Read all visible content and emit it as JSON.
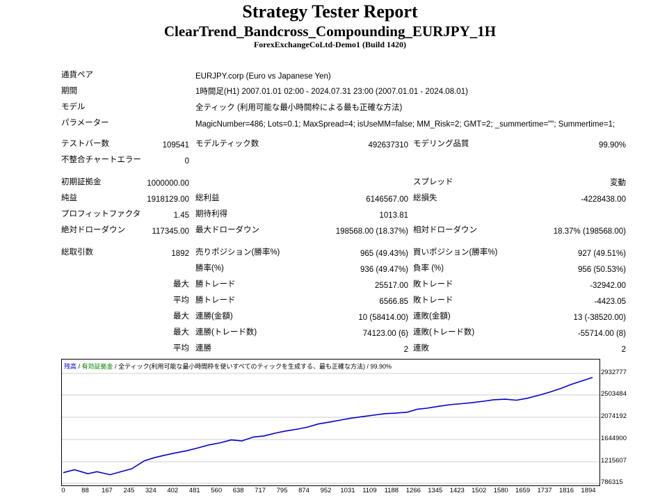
{
  "header": {
    "title": "Strategy Tester Report",
    "subtitle": "ClearTrend_Bandcross_Compounding_EURJPY_1H",
    "server": "ForexExchangeCoLtd-Demo1 (Build 1420)"
  },
  "info": [
    {
      "label": "通貨ペア",
      "value": "EURJPY.corp (Euro vs Japanese Yen)"
    },
    {
      "label": "期間",
      "value": "1時間足(H1) 2007.01.01 02:00 - 2024.07.31 23:00 (2007.01.01 - 2024.08.01)"
    },
    {
      "label": "モデル",
      "value": "全ティック (利用可能な最小時間枠による最も正確な方法)"
    },
    {
      "label": "パラメーター",
      "value": "MagicNumber=486; Lots=0.1; MaxSpread=4; isUseMM=false; MM_Risk=2; GMT=2; _summertime=\"\"; Summertime=1;"
    }
  ],
  "stats": {
    "bars_label": "テストバー数",
    "bars": "109541",
    "ticks_label": "モデルティック数",
    "ticks": "492637310",
    "quality_label": "モデリング品質",
    "quality": "99.90%",
    "errors_label": "不整合チャートエラー",
    "errors": "0",
    "deposit_label": "初期証拠金",
    "deposit": "1000000.00",
    "spread_label": "スプレッド",
    "spread": "変動",
    "net_label": "純益",
    "net": "1918129.00",
    "gross_profit_label": "総利益",
    "gross_profit": "6146567.00",
    "gross_loss_label": "総損失",
    "gross_loss": "-4228438.00",
    "pf_label": "プロフィットファクタ",
    "pf": "1.45",
    "expected_label": "期待利得",
    "expected": "1013.81",
    "abs_dd_label": "絶対ドローダウン",
    "abs_dd": "117345.00",
    "max_dd_label": "最大ドローダウン",
    "max_dd": "198568.00 (18.37%)",
    "rel_dd_label": "相対ドローダウン",
    "rel_dd": "18.37% (198568.00)",
    "trades_label": "総取引数",
    "trades": "1892",
    "short_label": "売りポジション(勝率%)",
    "short": "965 (49.43%)",
    "long_label": "買いポジション(勝率%)",
    "long": "927 (49.51%)",
    "win_label": "勝率(%)",
    "win": "936 (49.47%)",
    "loss_label": "負率 (%)",
    "loss": "956 (50.53%)",
    "max_prefix": "最大",
    "avg_prefix": "平均",
    "largest_win_label": "勝トレード",
    "largest_win": "25517.00",
    "largest_loss_label": "敗トレード",
    "largest_loss": "-32942.00",
    "avg_win_label": "勝トレード",
    "avg_win": "6566.85",
    "avg_loss_label": "敗トレード",
    "avg_loss": "-4423.05",
    "max_consec_win_label": "連勝(金額)",
    "max_consec_win": "10 (58414.00)",
    "max_consec_loss_label": "連敗(金額)",
    "max_consec_loss": "13 (-38520.00)",
    "max_consec_profit_label": "連勝(トレード数)",
    "max_consec_profit": "74123.00 (6)",
    "max_consec_lossamt_label": "連敗(トレード数)",
    "max_consec_lossamt": "-55714.00 (8)",
    "avg_consec_win_label": "連勝",
    "avg_consec_win": "2",
    "avg_consec_loss_label": "連敗",
    "avg_consec_loss": "2"
  },
  "chart_data": {
    "type": "line",
    "legend": {
      "balance": "残高",
      "sep1": " / ",
      "equity": "有効証拠金",
      "sep2": " / ",
      "model": "全ティック(利用可能な最小時間枠を使いすべてのティックを生成する、最も正確な方法) / 99.90%"
    },
    "colors": {
      "line": "#0000cc",
      "grid": "#cccccc",
      "equity": "#008000"
    },
    "yticks": [
      "2932777",
      "2503484",
      "2074192",
      "1644900",
      "1215607",
      "786315"
    ],
    "xticks": [
      "0",
      "88",
      "167",
      "245",
      "324",
      "402",
      "481",
      "560",
      "638",
      "717",
      "795",
      "874",
      "952",
      "1031",
      "1109",
      "1188",
      "1266",
      "1345",
      "1423",
      "1502",
      "1580",
      "1659",
      "1737",
      "1816",
      "1894"
    ],
    "xlim": [
      0,
      1892
    ],
    "ylim": [
      786315,
      3000000
    ],
    "x": [
      0,
      40,
      88,
      120,
      167,
      200,
      245,
      290,
      324,
      360,
      402,
      440,
      481,
      520,
      560,
      600,
      638,
      680,
      717,
      760,
      795,
      840,
      874,
      910,
      952,
      990,
      1031,
      1070,
      1109,
      1150,
      1188,
      1230,
      1266,
      1300,
      1345,
      1380,
      1423,
      1460,
      1502,
      1540,
      1580,
      1620,
      1659,
      1700,
      1737,
      1780,
      1816,
      1860,
      1892
    ],
    "y": [
      1000000,
      1060000,
      980000,
      1020000,
      960000,
      1010000,
      1080000,
      1240000,
      1300000,
      1350000,
      1400000,
      1440000,
      1500000,
      1560000,
      1600000,
      1660000,
      1640000,
      1720000,
      1740000,
      1800000,
      1840000,
      1880000,
      1920000,
      1980000,
      2020000,
      2060000,
      2100000,
      2130000,
      2160000,
      2190000,
      2200000,
      2220000,
      2280000,
      2300000,
      2340000,
      2370000,
      2390000,
      2410000,
      2440000,
      2470000,
      2480000,
      2460000,
      2500000,
      2560000,
      2620000,
      2700000,
      2780000,
      2860000,
      2918129
    ]
  }
}
